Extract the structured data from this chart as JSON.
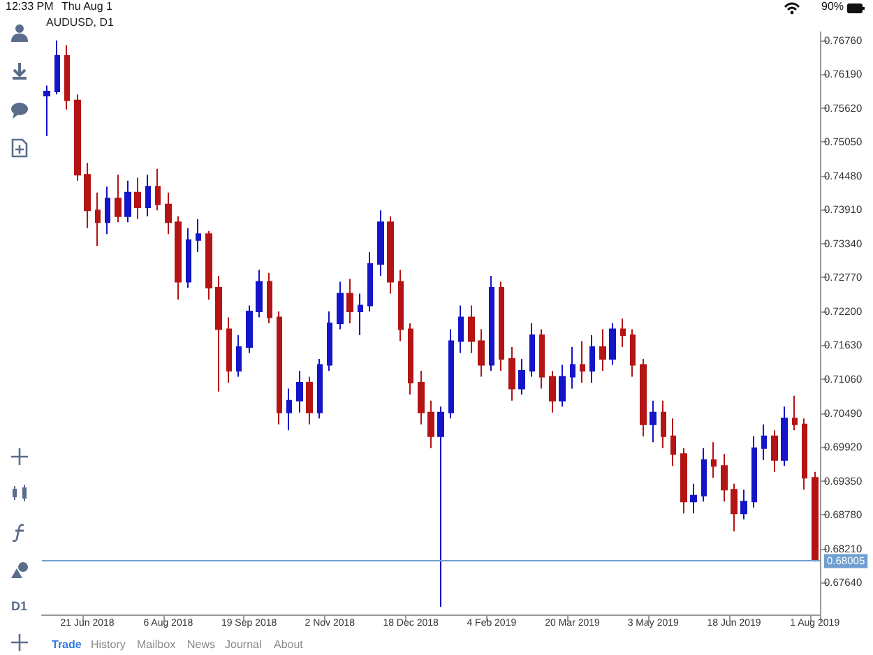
{
  "chart_data": {
    "type": "candlestick",
    "title": "AUDUSD, D1",
    "categories": [
      null,
      null,
      null,
      null,
      "21 Jun 2018",
      null,
      null,
      null,
      null,
      null,
      null,
      null,
      "6 Aug 2018",
      null,
      null,
      null,
      null,
      null,
      null,
      null,
      "19 Sep 2018",
      null,
      null,
      null,
      null,
      null,
      null,
      null,
      "2 Nov 2018",
      null,
      null,
      null,
      null,
      null,
      null,
      null,
      "18 Dec 2018",
      null,
      null,
      null,
      null,
      null,
      null,
      null,
      "4 Feb 2019",
      null,
      null,
      null,
      null,
      null,
      null,
      null,
      "20 Mar 2019",
      null,
      null,
      null,
      null,
      null,
      null,
      null,
      "3 May 2019",
      null,
      null,
      null,
      null,
      null,
      null,
      null,
      "18 Jun 2019",
      null,
      null,
      null,
      null,
      null,
      null,
      null,
      "1 Aug 2019"
    ],
    "ohlc": [
      [
        0.7583,
        0.76,
        0.7515,
        0.759
      ],
      [
        0.759,
        0.7676,
        0.7585,
        0.765
      ],
      [
        0.765,
        0.7668,
        0.756,
        0.7575
      ],
      [
        0.7575,
        0.7585,
        0.744,
        0.745
      ],
      [
        0.745,
        0.747,
        0.736,
        0.739
      ],
      [
        0.739,
        0.742,
        0.733,
        0.737
      ],
      [
        0.737,
        0.743,
        0.735,
        0.741
      ],
      [
        0.741,
        0.745,
        0.737,
        0.738
      ],
      [
        0.738,
        0.744,
        0.737,
        0.742
      ],
      [
        0.742,
        0.7445,
        0.7375,
        0.7395
      ],
      [
        0.7395,
        0.745,
        0.738,
        0.743
      ],
      [
        0.743,
        0.746,
        0.739,
        0.74
      ],
      [
        0.74,
        0.742,
        0.735,
        0.737
      ],
      [
        0.737,
        0.738,
        0.724,
        0.727
      ],
      [
        0.727,
        0.736,
        0.726,
        0.734
      ],
      [
        0.734,
        0.7375,
        0.732,
        0.735
      ],
      [
        0.735,
        0.7355,
        0.724,
        0.726
      ],
      [
        0.726,
        0.728,
        0.7085,
        0.719
      ],
      [
        0.719,
        0.721,
        0.71,
        0.712
      ],
      [
        0.712,
        0.718,
        0.711,
        0.716
      ],
      [
        0.716,
        0.723,
        0.715,
        0.722
      ],
      [
        0.722,
        0.729,
        0.721,
        0.727
      ],
      [
        0.727,
        0.7285,
        0.72,
        0.721
      ],
      [
        0.721,
        0.722,
        0.703,
        0.705
      ],
      [
        0.705,
        0.709,
        0.702,
        0.707
      ],
      [
        0.707,
        0.712,
        0.705,
        0.71
      ],
      [
        0.71,
        0.711,
        0.703,
        0.705
      ],
      [
        0.705,
        0.714,
        0.704,
        0.713
      ],
      [
        0.713,
        0.722,
        0.712,
        0.72
      ],
      [
        0.72,
        0.727,
        0.719,
        0.725
      ],
      [
        0.725,
        0.7275,
        0.72,
        0.722
      ],
      [
        0.722,
        0.725,
        0.718,
        0.723
      ],
      [
        0.723,
        0.732,
        0.722,
        0.73
      ],
      [
        0.73,
        0.739,
        0.728,
        0.737
      ],
      [
        0.737,
        0.738,
        0.725,
        0.727
      ],
      [
        0.727,
        0.729,
        0.717,
        0.719
      ],
      [
        0.719,
        0.72,
        0.708,
        0.71
      ],
      [
        0.71,
        0.712,
        0.703,
        0.705
      ],
      [
        0.705,
        0.707,
        0.699,
        0.701
      ],
      [
        0.701,
        0.706,
        0.6723,
        0.705
      ],
      [
        0.705,
        0.719,
        0.704,
        0.717
      ],
      [
        0.717,
        0.723,
        0.715,
        0.721
      ],
      [
        0.721,
        0.723,
        0.715,
        0.717
      ],
      [
        0.717,
        0.719,
        0.711,
        0.713
      ],
      [
        0.713,
        0.728,
        0.712,
        0.726
      ],
      [
        0.726,
        0.727,
        0.712,
        0.714
      ],
      [
        0.714,
        0.716,
        0.707,
        0.709
      ],
      [
        0.709,
        0.714,
        0.708,
        0.712
      ],
      [
        0.712,
        0.72,
        0.711,
        0.718
      ],
      [
        0.718,
        0.719,
        0.709,
        0.711
      ],
      [
        0.711,
        0.712,
        0.705,
        0.707
      ],
      [
        0.707,
        0.713,
        0.706,
        0.711
      ],
      [
        0.711,
        0.716,
        0.709,
        0.713
      ],
      [
        0.713,
        0.717,
        0.71,
        0.712
      ],
      [
        0.712,
        0.718,
        0.71,
        0.716
      ],
      [
        0.716,
        0.719,
        0.712,
        0.714
      ],
      [
        0.714,
        0.72,
        0.713,
        0.719
      ],
      [
        0.719,
        0.7208,
        0.716,
        0.718
      ],
      [
        0.718,
        0.719,
        0.711,
        0.713
      ],
      [
        0.713,
        0.714,
        0.701,
        0.703
      ],
      [
        0.703,
        0.707,
        0.7,
        0.705
      ],
      [
        0.705,
        0.707,
        0.699,
        0.701
      ],
      [
        0.701,
        0.704,
        0.696,
        0.698
      ],
      [
        0.698,
        0.699,
        0.688,
        0.69
      ],
      [
        0.69,
        0.693,
        0.688,
        0.691
      ],
      [
        0.691,
        0.699,
        0.69,
        0.697
      ],
      [
        0.697,
        0.7,
        0.694,
        0.696
      ],
      [
        0.696,
        0.698,
        0.69,
        0.692
      ],
      [
        0.692,
        0.693,
        0.685,
        0.688
      ],
      [
        0.688,
        0.692,
        0.687,
        0.69
      ],
      [
        0.69,
        0.701,
        0.689,
        0.699
      ],
      [
        0.699,
        0.703,
        0.697,
        0.701
      ],
      [
        0.701,
        0.702,
        0.695,
        0.697
      ],
      [
        0.697,
        0.706,
        0.696,
        0.704
      ],
      [
        0.704,
        0.7078,
        0.702,
        0.703
      ],
      [
        0.703,
        0.704,
        0.692,
        0.694
      ],
      [
        0.694,
        0.695,
        0.6799,
        0.68005
      ]
    ],
    "colors": [
      "#1414c8",
      "#1414c8",
      "#b41414",
      "#b41414",
      "#b41414",
      "#b41414",
      "#1414c8",
      "#b41414",
      "#1414c8",
      "#b41414",
      "#1414c8",
      "#b41414",
      "#b41414",
      "#b41414",
      "#1414c8",
      "#1414c8",
      "#b41414",
      "#b41414",
      "#b41414",
      "#1414c8",
      "#1414c8",
      "#1414c8",
      "#b41414",
      "#b41414",
      "#1414c8",
      "#1414c8",
      "#b41414",
      "#1414c8",
      "#1414c8",
      "#1414c8",
      "#b41414",
      "#1414c8",
      "#1414c8",
      "#1414c8",
      "#b41414",
      "#b41414",
      "#b41414",
      "#b41414",
      "#b41414",
      "#1414c8",
      "#1414c8",
      "#1414c8",
      "#b41414",
      "#b41414",
      "#1414c8",
      "#b41414",
      "#b41414",
      "#1414c8",
      "#1414c8",
      "#b41414",
      "#b41414",
      "#1414c8",
      "#1414c8",
      "#b41414",
      "#1414c8",
      "#b41414",
      "#1414c8",
      "#b41414",
      "#b41414",
      "#b41414",
      "#1414c8",
      "#b41414",
      "#b41414",
      "#b41414",
      "#1414c8",
      "#1414c8",
      "#b41414",
      "#b41414",
      "#b41414",
      "#1414c8",
      "#1414c8",
      "#1414c8",
      "#b41414",
      "#1414c8",
      "#b41414",
      "#b41414",
      "#b41414"
    ],
    "ylim": [
      0.671,
      0.769
    ],
    "yticks": [
      {
        "value": 0.6764,
        "label": "0.67640"
      },
      {
        "value": 0.6821,
        "label": "0.68210"
      },
      {
        "value": 0.6878,
        "label": "0.68780"
      },
      {
        "value": 0.6935,
        "label": "0.69350"
      },
      {
        "value": 0.6992,
        "label": "0.69920"
      },
      {
        "value": 0.7049,
        "label": "0.70490"
      },
      {
        "value": 0.7106,
        "label": "0.71060"
      },
      {
        "value": 0.7163,
        "label": "0.71630"
      },
      {
        "value": 0.722,
        "label": "0.72200"
      },
      {
        "value": 0.7277,
        "label": "0.72770"
      },
      {
        "value": 0.7334,
        "label": "0.73340"
      },
      {
        "value": 0.7391,
        "label": "0.73910"
      },
      {
        "value": 0.7448,
        "label": "0.74480"
      },
      {
        "value": 0.7505,
        "label": "0.75050"
      },
      {
        "value": 0.7562,
        "label": "0.75620"
      },
      {
        "value": 0.7619,
        "label": "0.76190"
      },
      {
        "value": 0.7676,
        "label": "0.76760"
      }
    ],
    "ref_lines": [
      {
        "axis": "y",
        "value": 0.68005,
        "label": "0.68005",
        "color": "#6f9fd0"
      }
    ],
    "grid": false,
    "annotations": [
      "12:33 PM",
      "Thu Aug 1",
      "90%",
      "D1",
      "Trade",
      "History",
      "Mailbox",
      "News",
      "Journal",
      "About"
    ]
  }
}
